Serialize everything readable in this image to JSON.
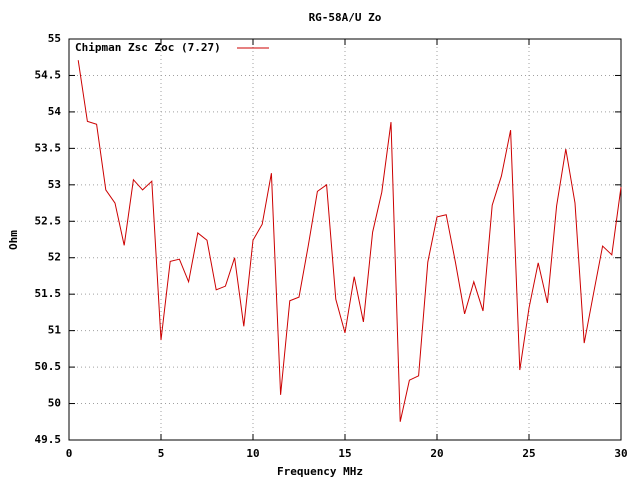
{
  "chart_data": {
    "type": "line",
    "title": "RG-58A/U Zo",
    "xlabel": "Frequency MHz",
    "ylabel": "Ohm",
    "x": [
      0.5,
      1,
      1.5,
      2,
      2.5,
      3,
      3.5,
      4,
      4.5,
      5,
      5.5,
      6,
      6.5,
      7,
      7.5,
      8,
      8.5,
      9,
      9.5,
      10,
      10.5,
      11,
      11.5,
      12,
      12.5,
      13,
      13.5,
      14,
      14.5,
      15,
      15.5,
      16,
      16.5,
      17,
      17.5,
      18,
      18.5,
      19,
      19.5,
      20,
      20.5,
      21,
      21.5,
      22,
      22.5,
      23,
      23.5,
      24,
      24.5,
      25,
      25.5,
      26,
      26.5,
      27,
      27.5,
      28,
      28.5,
      29,
      29.5,
      30
    ],
    "series": [
      {
        "name": "Chipman Zsc Zoc (7.27)",
        "color": "#cc0000",
        "values": [
          54.71,
          53.87,
          53.83,
          52.93,
          52.75,
          52.17,
          53.07,
          52.93,
          53.05,
          50.87,
          51.95,
          51.98,
          51.67,
          52.34,
          52.24,
          51.56,
          51.61,
          52.0,
          51.06,
          52.24,
          52.46,
          53.16,
          50.12,
          51.41,
          51.46,
          52.16,
          52.91,
          53.0,
          51.43,
          50.97,
          51.74,
          51.12,
          52.35,
          52.9,
          53.86,
          49.75,
          50.32,
          50.38,
          51.94,
          52.56,
          52.59,
          51.94,
          51.23,
          51.67,
          51.27,
          52.72,
          53.12,
          53.75,
          50.46,
          51.31,
          51.93,
          51.38,
          52.71,
          53.49,
          52.75,
          50.83,
          51.5,
          52.16,
          52.04,
          52.97
        ]
      }
    ],
    "xlim": [
      0,
      30
    ],
    "xticks": [
      0,
      5,
      10,
      15,
      20,
      25,
      30
    ],
    "ylim": [
      49.5,
      55
    ],
    "yticks": [
      49.5,
      50,
      50.5,
      51,
      51.5,
      52,
      52.5,
      53,
      53.5,
      54,
      54.5,
      55
    ],
    "grid": true,
    "legend": "top-left"
  }
}
